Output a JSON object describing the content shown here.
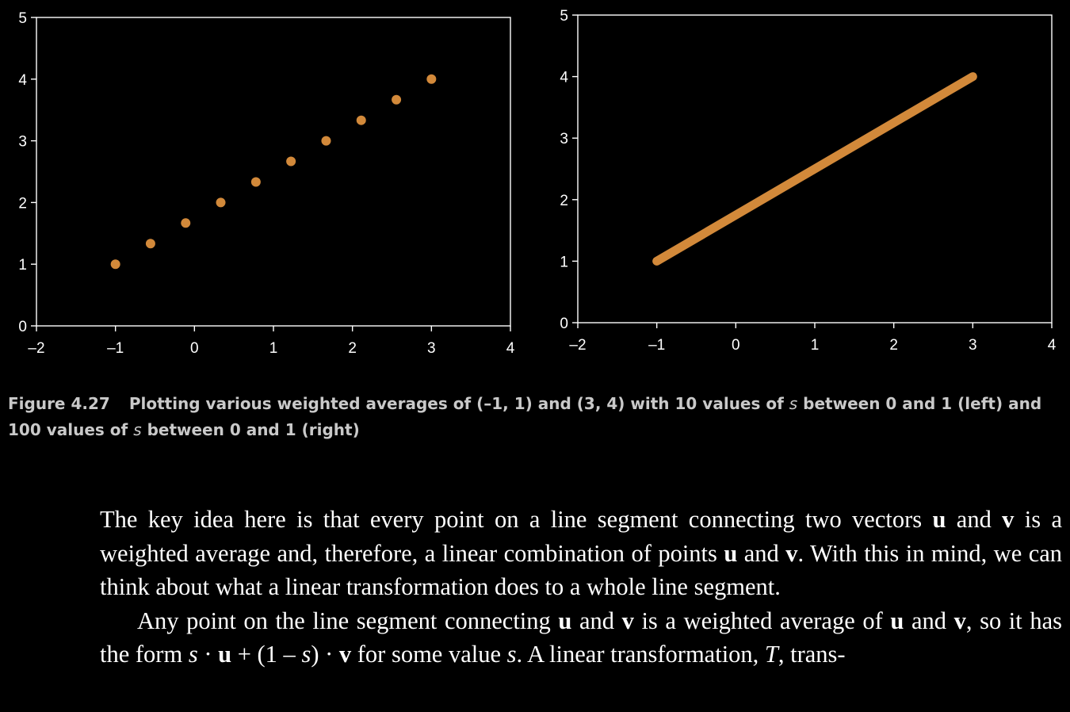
{
  "chart_data": [
    {
      "type": "scatter",
      "xlim": [
        -2,
        4
      ],
      "ylim": [
        0,
        5
      ],
      "x_ticks": [
        "–2",
        "–1",
        "0",
        "1",
        "2",
        "3",
        "4"
      ],
      "y_ticks": [
        "0",
        "1",
        "2",
        "3",
        "4",
        "5"
      ],
      "x": [
        -1,
        -0.556,
        -0.111,
        0.333,
        0.778,
        1.222,
        1.667,
        2.111,
        2.556,
        3
      ],
      "y": [
        1,
        1.333,
        1.667,
        2,
        2.333,
        2.667,
        3,
        3.333,
        3.667,
        4
      ],
      "grid": false,
      "color": "#d2893a"
    },
    {
      "type": "line",
      "xlim": [
        -2,
        4
      ],
      "ylim": [
        0,
        5
      ],
      "x_ticks": [
        "–2",
        "–1",
        "0",
        "1",
        "2",
        "3",
        "4"
      ],
      "y_ticks": [
        "0",
        "1",
        "2",
        "3",
        "4",
        "5"
      ],
      "x": [
        -1,
        3
      ],
      "y": [
        1,
        4
      ],
      "grid": false,
      "color": "#d2893a"
    }
  ],
  "caption": {
    "number": "Figure 4.27",
    "text_a": "Plotting various weighted averages of (–1, 1) and (3, 4) with 10 values of ",
    "s1": "s",
    "text_b": " between 0 and 1 (left) and 100 values of ",
    "s2": "s",
    "text_c": " between 0 and 1 (right)"
  },
  "paragraph1": {
    "t1": "The key idea here is that every point on a line segment connecting two vectors ",
    "u1": "u",
    "t2": " and ",
    "v1": "v",
    "t3": " is a weighted average and, therefore, a linear combination of points ",
    "u2": "u",
    "t4": " and ",
    "v2": "v",
    "t5": ". With this in mind, we can think about what a linear transformation does to a whole line segment."
  },
  "paragraph2": {
    "t1": "Any point on the line segment connecting ",
    "u1": "u",
    "t2": " and ",
    "v1": "v",
    "t3": " is a weighted average of ",
    "u2": "u",
    "t4": " and ",
    "v2": "v",
    "t5": ", so it has the form ",
    "s1": "s",
    "t6": " · ",
    "u3": "u",
    "t7": " + (1 – ",
    "s2": "s",
    "t8": ") · ",
    "v3": "v",
    "t9": " for some value ",
    "s3": "s",
    "t10": ". A linear transformation, ",
    "T": "T",
    "t11": ", trans-"
  }
}
